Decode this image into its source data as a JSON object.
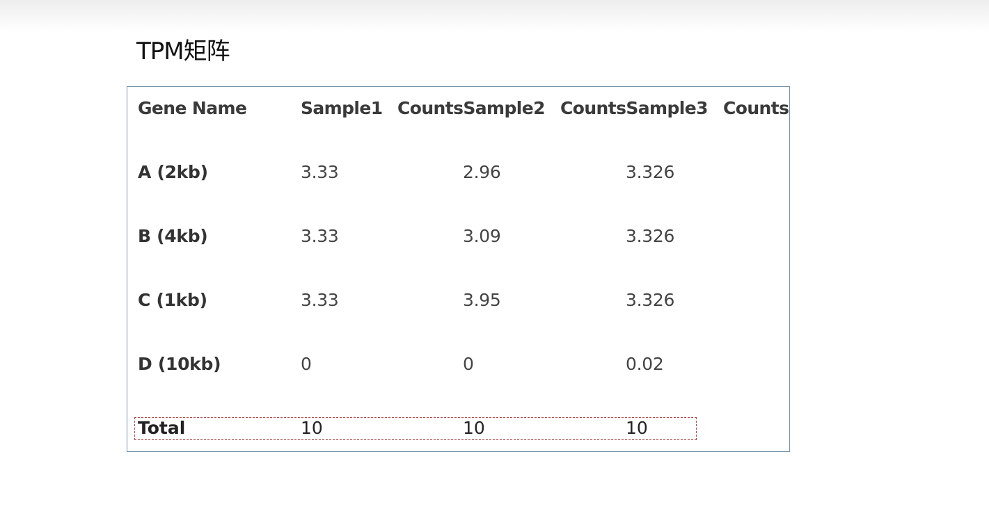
{
  "title": "TPM矩阵",
  "table": {
    "headers": [
      "Gene Name",
      "Sample1",
      "CountsSample2",
      "CountsSample3",
      "Counts"
    ],
    "rows": [
      {
        "gene": "A (2kb)",
        "s1": "3.33",
        "s2": "2.96",
        "s3": "3.326"
      },
      {
        "gene": "B (4kb)",
        "s1": "3.33",
        "s2": "3.09",
        "s3": "3.326"
      },
      {
        "gene": "C (1kb)",
        "s1": "3.33",
        "s2": "3.95",
        "s3": "3.326"
      },
      {
        "gene": "D (10kb)",
        "s1": "0",
        "s2": "0",
        "s3": "0.02"
      }
    ],
    "total": {
      "label": "Total",
      "s1": "10",
      "s2": "10",
      "s3": "10"
    }
  }
}
